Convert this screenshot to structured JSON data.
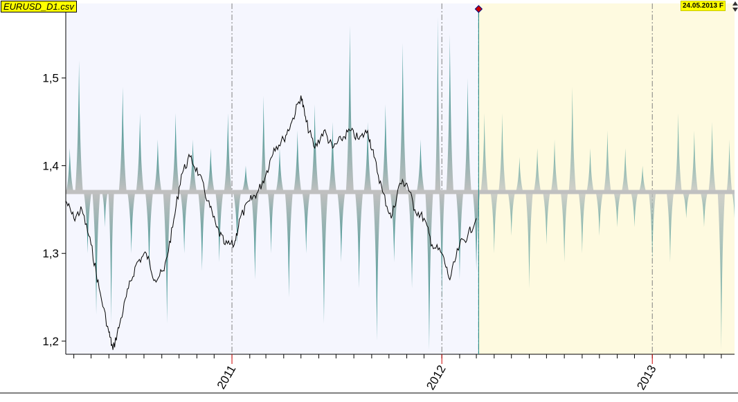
{
  "header": {
    "file_label": "EURUSD_D1.csv",
    "date_label": "24.05.2013 F"
  },
  "colors": {
    "history_bg": "#f5f6fe",
    "forecast_bg": "#fefae0",
    "price_line": "#000000",
    "teal": "#1e8a86",
    "gray_baseline": "#c0c0c0",
    "forecast_marker": "#1e8a86"
  },
  "icons": {
    "scroll_up": "triangle-up-icon",
    "scroll_down": "triangle-down-icon",
    "marker": "diamond-marker-icon"
  },
  "chart_data": {
    "type": "line",
    "title": "",
    "xlabel": "",
    "ylabel": "",
    "ylim": [
      1.185,
      1.585
    ],
    "xlim": [
      "2010-03-18",
      "2013-05-24"
    ],
    "yticks": [
      "1,2",
      "1,3",
      "1,4",
      "1,5"
    ],
    "ytick_values": [
      1.2,
      1.3,
      1.4,
      1.5
    ],
    "xticks": [
      "2011",
      "2012",
      "2013"
    ],
    "xtick_dates": [
      "2011-01-01",
      "2012-01-01",
      "2013-01-01"
    ],
    "forecast_start": "2012-03-05",
    "baseline": 1.37,
    "grid": "dashed vertical at year boundaries",
    "series": [
      {
        "kind": "price",
        "x": [
          "2010-03-18",
          "2010-04-01",
          "2010-04-15",
          "2010-05-01",
          "2010-05-15",
          "2010-06-01",
          "2010-06-08",
          "2010-06-20",
          "2010-07-05",
          "2010-07-20",
          "2010-08-05",
          "2010-08-20",
          "2010-09-05",
          "2010-09-20",
          "2010-10-05",
          "2010-10-20",
          "2010-11-05",
          "2010-11-20",
          "2010-12-05",
          "2010-12-20",
          "2011-01-05",
          "2011-01-15",
          "2011-02-01",
          "2011-02-15",
          "2011-03-01",
          "2011-03-15",
          "2011-04-01",
          "2011-04-15",
          "2011-05-01",
          "2011-05-10",
          "2011-05-25",
          "2011-06-10",
          "2011-06-25",
          "2011-07-10",
          "2011-07-25",
          "2011-08-10",
          "2011-08-25",
          "2011-09-05",
          "2011-09-20",
          "2011-10-05",
          "2011-10-20",
          "2011-11-01",
          "2011-11-15",
          "2011-12-01",
          "2011-12-15",
          "2012-01-01",
          "2012-01-15",
          "2012-02-01",
          "2012-02-15",
          "2012-03-01"
        ],
        "values": [
          1.36,
          1.34,
          1.35,
          1.31,
          1.26,
          1.21,
          1.19,
          1.22,
          1.26,
          1.29,
          1.3,
          1.27,
          1.28,
          1.33,
          1.39,
          1.41,
          1.39,
          1.36,
          1.33,
          1.31,
          1.31,
          1.34,
          1.36,
          1.37,
          1.39,
          1.42,
          1.43,
          1.45,
          1.48,
          1.45,
          1.42,
          1.44,
          1.42,
          1.43,
          1.44,
          1.43,
          1.44,
          1.41,
          1.37,
          1.34,
          1.38,
          1.38,
          1.35,
          1.34,
          1.31,
          1.3,
          1.27,
          1.31,
          1.32,
          1.34
        ]
      },
      {
        "kind": "indicator-peaks",
        "baseline": 1.37,
        "x": [
          "2010-03-25",
          "2010-04-10",
          "2010-04-25",
          "2010-05-10",
          "2010-05-25",
          "2010-06-05",
          "2010-06-25",
          "2010-07-10",
          "2010-07-25",
          "2010-08-10",
          "2010-08-25",
          "2010-09-10",
          "2010-09-25",
          "2010-10-10",
          "2010-10-25",
          "2010-11-10",
          "2010-11-25",
          "2010-12-10",
          "2010-12-25",
          "2011-01-10",
          "2011-01-25",
          "2011-02-10",
          "2011-02-25",
          "2011-03-10",
          "2011-03-25",
          "2011-04-10",
          "2011-04-25",
          "2011-05-10",
          "2011-05-25",
          "2011-06-10",
          "2011-06-25",
          "2011-07-10",
          "2011-07-25",
          "2011-08-10",
          "2011-08-25",
          "2011-09-10",
          "2011-09-25",
          "2011-10-10",
          "2011-10-25",
          "2011-11-10",
          "2011-11-25",
          "2011-12-10",
          "2011-12-25",
          "2012-01-01",
          "2012-01-15",
          "2012-02-01",
          "2012-02-15",
          "2012-03-01",
          "2012-03-15",
          "2012-04-01",
          "2012-04-15",
          "2012-05-01",
          "2012-05-15",
          "2012-06-01",
          "2012-06-15",
          "2012-07-01",
          "2012-07-15",
          "2012-08-01",
          "2012-08-15",
          "2012-09-01",
          "2012-09-15",
          "2012-10-01",
          "2012-10-15",
          "2012-11-01",
          "2012-11-15",
          "2012-12-01",
          "2012-12-15",
          "2013-01-01",
          "2013-01-15",
          "2013-02-01",
          "2013-02-15",
          "2013-03-01",
          "2013-03-15",
          "2013-04-01",
          "2013-04-15",
          "2013-05-01",
          "2013-05-15",
          "2013-05-24"
        ],
        "values": [
          1.42,
          1.52,
          1.3,
          1.23,
          1.33,
          1.22,
          1.49,
          1.3,
          1.46,
          1.28,
          1.43,
          1.22,
          1.46,
          1.3,
          1.43,
          1.28,
          1.42,
          1.29,
          1.46,
          1.31,
          1.4,
          1.27,
          1.48,
          1.3,
          1.42,
          1.25,
          1.44,
          1.3,
          1.47,
          1.22,
          1.45,
          1.29,
          1.56,
          1.26,
          1.45,
          1.2,
          1.47,
          1.29,
          1.54,
          1.26,
          1.43,
          1.19,
          1.57,
          1.24,
          1.55,
          1.27,
          1.5,
          1.28,
          1.46,
          1.3,
          1.46,
          1.32,
          1.41,
          1.26,
          1.42,
          1.31,
          1.43,
          1.29,
          1.49,
          1.3,
          1.42,
          1.32,
          1.44,
          1.33,
          1.42,
          1.33,
          1.4,
          1.29,
          1.37,
          1.29,
          1.46,
          1.34,
          1.44,
          1.33,
          1.45,
          1.19,
          1.43,
          1.34
        ]
      }
    ]
  }
}
